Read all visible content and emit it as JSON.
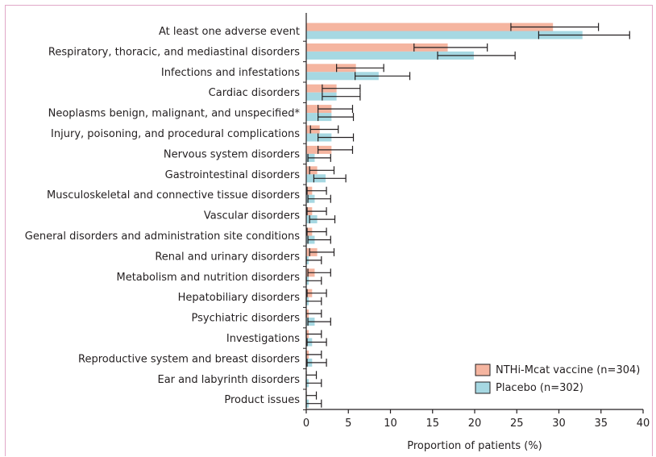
{
  "colors": {
    "vaccine": "#f5b5a0",
    "placebo": "#a6d8e2",
    "axis": "#231f20",
    "frame": "#e1a8c8"
  },
  "chart_data": {
    "type": "bar",
    "orientation": "horizontal",
    "xlabel": "Proportion of patients (%)",
    "xlim": [
      0,
      40
    ],
    "xticks": [
      0,
      5,
      10,
      15,
      20,
      25,
      30,
      35,
      40
    ],
    "grid": false,
    "legend_position": "bottom-right",
    "categories": [
      "At least one adverse event",
      "Respiratory, thoracic, and mediastinal disorders",
      "Infections and infestations",
      "Cardiac disorders",
      "Neoplasms benign, malignant, and unspecified*",
      "Injury, poisoning, and procedural complications",
      "Nervous system disorders",
      "Gastrointestinal disorders",
      "Musculoskeletal and connective tissue disorders",
      "Vascular disorders",
      "General disorders and administration site conditions",
      "Renal and urinary disorders",
      "Metabolism and nutrition disorders",
      "Hepatobiliary disorders",
      "Psychiatric disorders",
      "Investigations",
      "Reproductive system and breast disorders",
      "Ear and labyrinth disorders",
      "Product issues"
    ],
    "series": [
      {
        "name": "NTHi-Mcat vaccine (n=304)",
        "color": "#f5b5a0",
        "values": [
          29.3,
          16.8,
          5.9,
          3.6,
          3.0,
          1.6,
          3.0,
          1.3,
          0.7,
          0.7,
          0.7,
          1.3,
          1.0,
          0.7,
          0.3,
          0.3,
          0.3,
          0.0,
          0.0
        ],
        "ci_lower": [
          24.3,
          12.8,
          3.6,
          1.9,
          1.4,
          0.5,
          1.4,
          0.4,
          0.1,
          0.1,
          0.1,
          0.4,
          0.2,
          0.1,
          0.0,
          0.0,
          0.0,
          0.0,
          0.0
        ],
        "ci_upper": [
          34.7,
          21.5,
          9.2,
          6.4,
          5.5,
          3.8,
          5.5,
          3.3,
          2.4,
          2.4,
          2.4,
          3.3,
          2.9,
          2.4,
          1.8,
          1.8,
          1.8,
          1.2,
          1.2
        ]
      },
      {
        "name": "Placebo (n=302)",
        "color": "#a6d8e2",
        "values": [
          32.8,
          19.9,
          8.6,
          3.6,
          3.0,
          3.0,
          1.0,
          2.3,
          1.0,
          1.3,
          1.0,
          0.3,
          0.3,
          0.3,
          1.0,
          0.7,
          0.7,
          0.3,
          0.3
        ],
        "ci_lower": [
          27.6,
          15.6,
          5.8,
          1.9,
          1.4,
          1.4,
          0.2,
          0.9,
          0.2,
          0.4,
          0.2,
          0.0,
          0.0,
          0.0,
          0.2,
          0.1,
          0.1,
          0.0,
          0.0
        ],
        "ci_upper": [
          38.4,
          24.8,
          12.3,
          6.4,
          5.6,
          5.6,
          2.9,
          4.7,
          2.9,
          3.4,
          2.9,
          1.8,
          1.8,
          1.8,
          2.9,
          2.4,
          2.4,
          1.8,
          1.8
        ]
      }
    ]
  }
}
